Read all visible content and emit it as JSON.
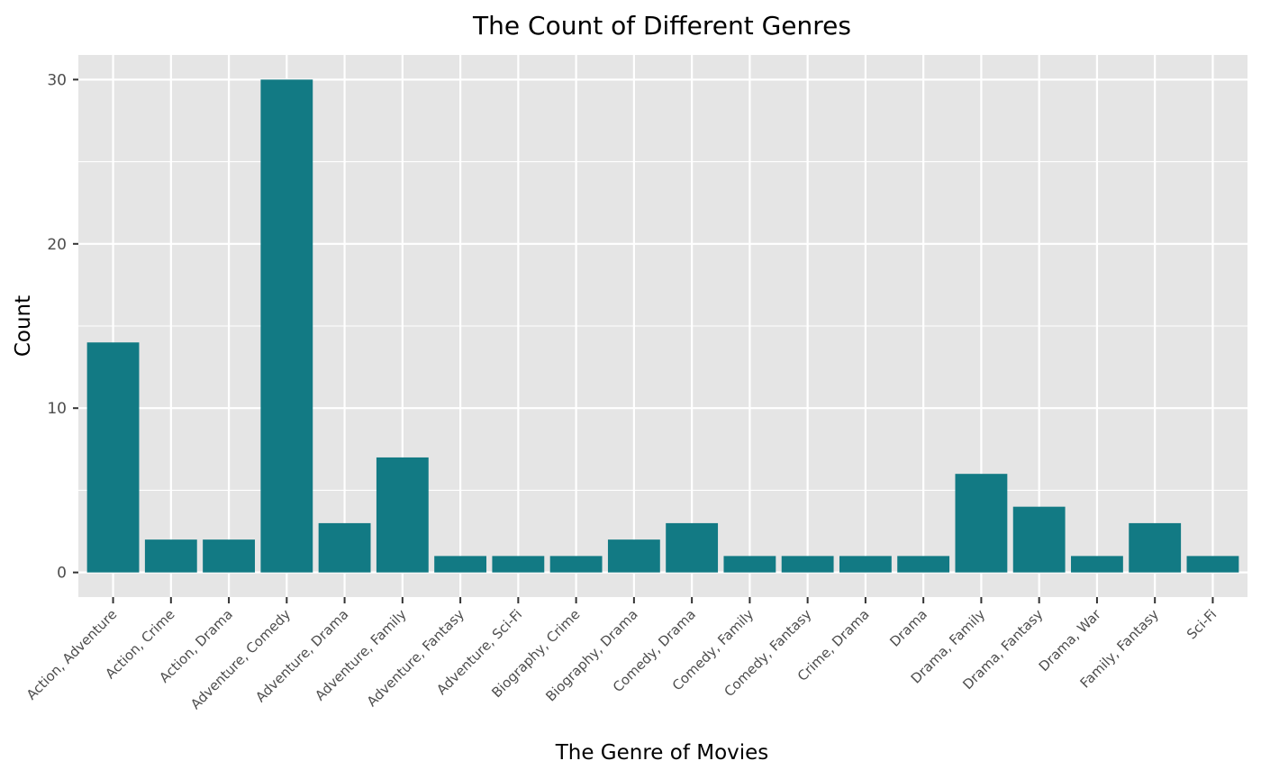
{
  "chart_data": {
    "type": "bar",
    "title": "The Count of Different Genres",
    "xlabel": "The Genre of Movies",
    "ylabel": "Count",
    "categories": [
      "Action, Adventure",
      "Action, Crime",
      "Action, Drama",
      "Adventure, Comedy",
      "Adventure, Drama",
      "Adventure, Family",
      "Adventure, Fantasy",
      "Adventure, Sci-Fi",
      "Biography, Crime",
      "Biography, Drama",
      "Comedy, Drama",
      "Comedy, Family",
      "Comedy, Fantasy",
      "Crime, Drama",
      "Drama",
      "Drama, Family",
      "Drama, Fantasy",
      "Drama, War",
      "Family, Fantasy",
      "Sci-Fi"
    ],
    "values": [
      14,
      2,
      2,
      30,
      3,
      7,
      1,
      1,
      1,
      2,
      3,
      1,
      1,
      1,
      1,
      6,
      4,
      1,
      3,
      1
    ],
    "ylim": [
      -1.5,
      31.5
    ],
    "yticks": [
      0,
      10,
      20,
      30
    ],
    "grid": true,
    "colors": {
      "bar": "#127A84",
      "panel": "#E5E5E5",
      "grid": "#FFFFFF",
      "tick": "#333333"
    }
  }
}
